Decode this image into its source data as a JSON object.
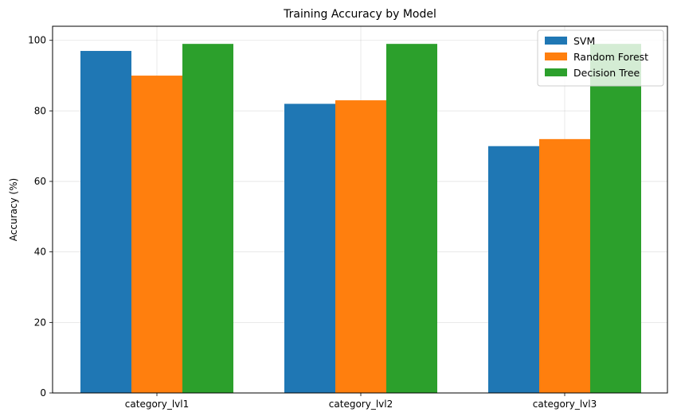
{
  "chart_data": {
    "type": "bar",
    "title": "Training Accuracy by Model",
    "xlabel": "",
    "ylabel": "Accuracy (%)",
    "categories": [
      "category_lvl1",
      "category_lvl2",
      "category_lvl3"
    ],
    "series": [
      {
        "name": "SVM",
        "color": "#1f77b4",
        "values": [
          97,
          82,
          70
        ]
      },
      {
        "name": "Random Forest",
        "color": "#ff7f0e",
        "values": [
          90,
          83,
          72
        ]
      },
      {
        "name": "Decision Tree",
        "color": "#2ca02c",
        "values": [
          99,
          99,
          99
        ]
      }
    ],
    "ylim": [
      0,
      104
    ],
    "yticks": [
      0,
      20,
      40,
      60,
      80,
      100
    ],
    "grid": true,
    "legend_position": "top-right"
  }
}
